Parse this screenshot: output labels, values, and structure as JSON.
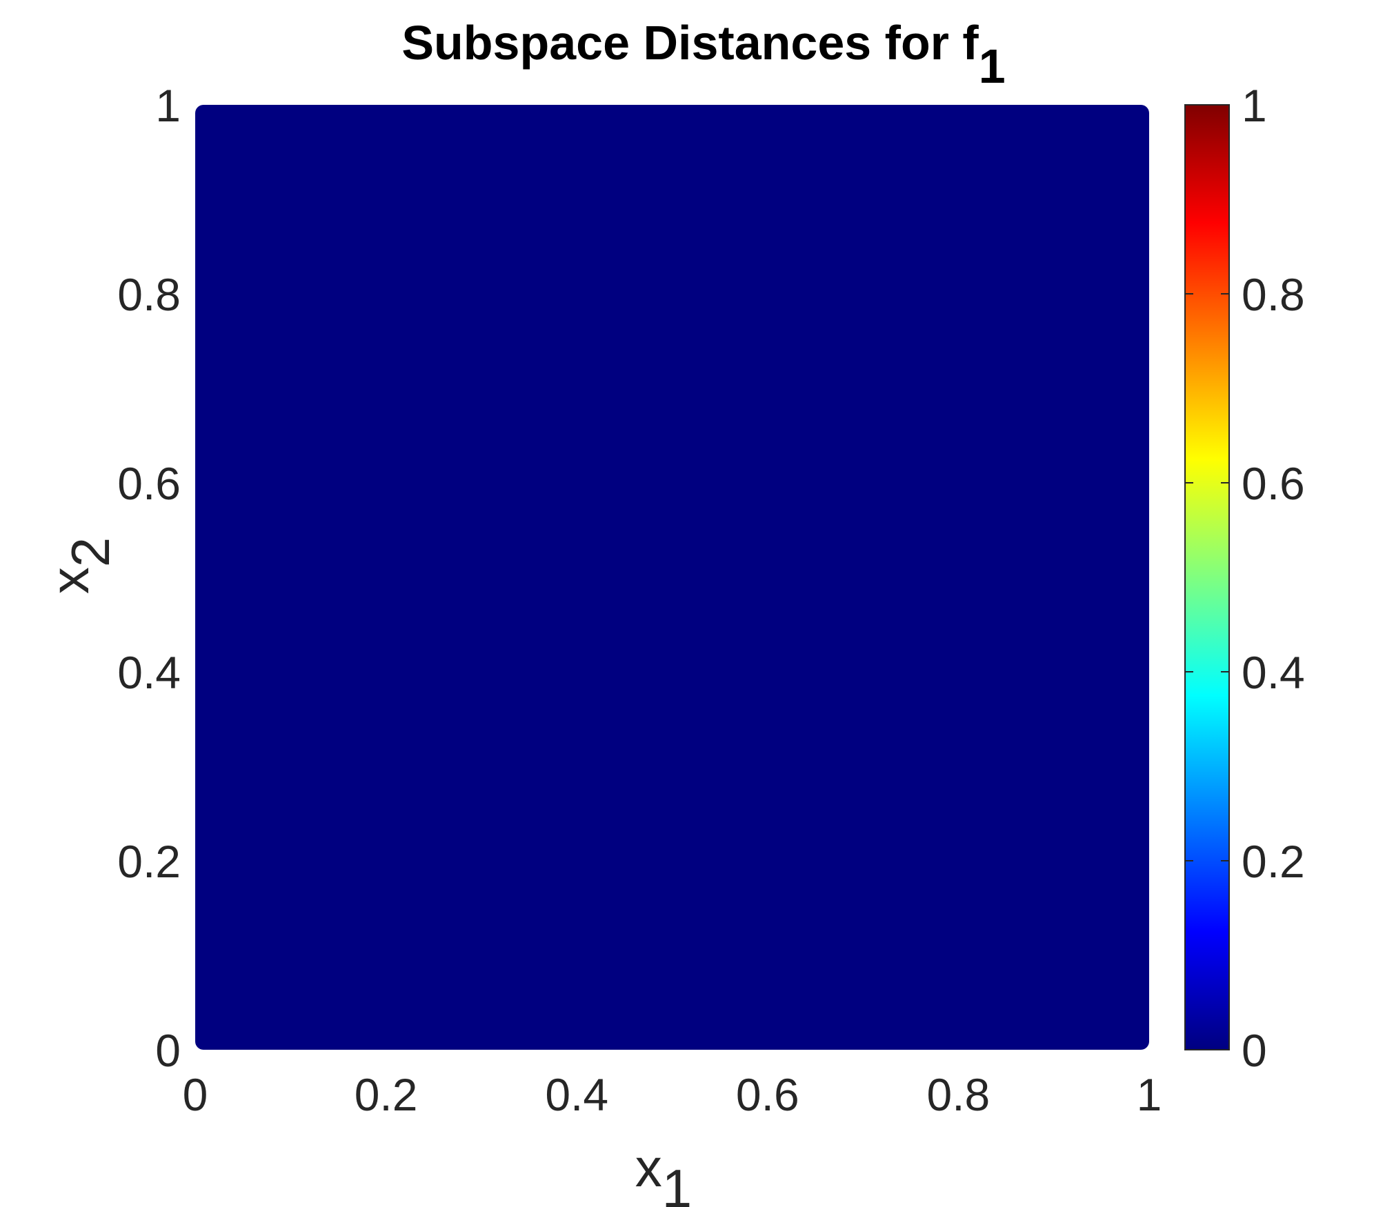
{
  "chart_data": {
    "type": "heatmap",
    "title": "Subspace Distances for f",
    "title_subscript": "1",
    "xlabel": "x",
    "xlabel_subscript": "1",
    "ylabel": "x",
    "ylabel_subscript": "2",
    "xlim": [
      0,
      1
    ],
    "ylim": [
      0,
      1
    ],
    "xticks": [
      0,
      0.2,
      0.4,
      0.6,
      0.8,
      1
    ],
    "xtick_labels": [
      "0",
      "0.2",
      "0.4",
      "0.6",
      "0.8",
      "1"
    ],
    "yticks": [
      0,
      0.2,
      0.4,
      0.6,
      0.8,
      1
    ],
    "ytick_labels": [
      "0",
      "0.2",
      "0.4",
      "0.6",
      "0.8",
      "1"
    ],
    "grid": false,
    "colormap": "jet",
    "colorbar": {
      "position": "right",
      "limits": [
        0,
        1
      ],
      "ticks": [
        0,
        0.2,
        0.4,
        0.6,
        0.8,
        1
      ],
      "tick_labels": [
        "0",
        "0.2",
        "0.4",
        "0.6",
        "0.8",
        "1"
      ]
    },
    "field_value": 0,
    "field_color": "#000080",
    "data_coverage": {
      "x": [
        0,
        1
      ],
      "y": [
        0,
        1
      ]
    }
  }
}
